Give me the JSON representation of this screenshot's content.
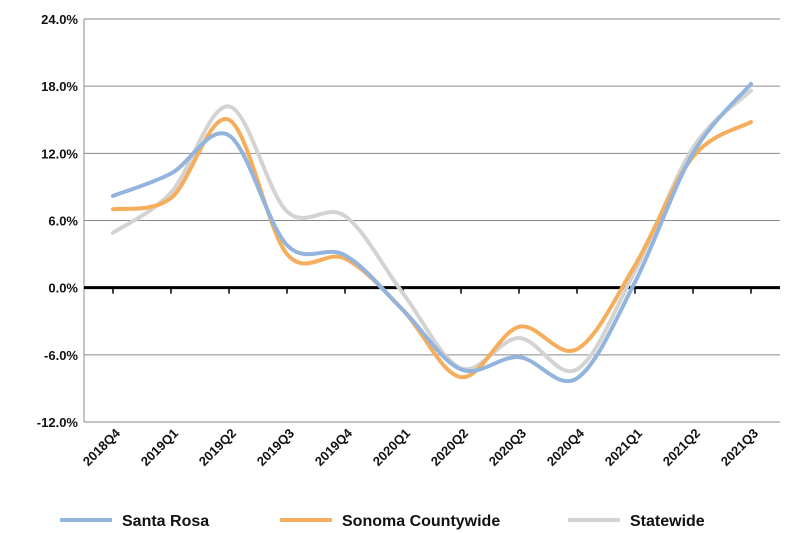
{
  "chart_data": {
    "type": "line",
    "categories": [
      "2018Q4",
      "2019Q1",
      "2019Q2",
      "2019Q3",
      "2019Q4",
      "2020Q1",
      "2020Q2",
      "2020Q3",
      "2020Q4",
      "2021Q1",
      "2021Q2",
      "2021Q3"
    ],
    "series": [
      {
        "name": "Santa Rosa",
        "color": "#92b4dd",
        "values": [
          8.2,
          10.2,
          13.6,
          3.8,
          2.9,
          -2.0,
          -7.3,
          -6.2,
          -8.1,
          0.5,
          12.0,
          18.2
        ]
      },
      {
        "name": "Sonoma Countywide",
        "color": "#f6ad5c",
        "values": [
          7.0,
          8.0,
          15.0,
          3.0,
          2.6,
          -2.0,
          -8.0,
          -3.5,
          -5.5,
          2.0,
          11.7,
          14.8
        ]
      },
      {
        "name": "Statewide",
        "color": "#d4d3d1",
        "values": [
          4.9,
          8.5,
          16.2,
          6.8,
          6.4,
          -0.5,
          -7.2,
          -4.5,
          -7.3,
          1.5,
          12.5,
          17.6
        ]
      }
    ],
    "yticks": [
      "24.0%",
      "18.0%",
      "12.0%",
      "6.0%",
      "0.0%",
      "-6.0%",
      "-12.0%"
    ],
    "ylim": [
      -12,
      24
    ],
    "grid": true,
    "legend_position": "bottom",
    "title": "",
    "xlabel": "",
    "ylabel": ""
  }
}
